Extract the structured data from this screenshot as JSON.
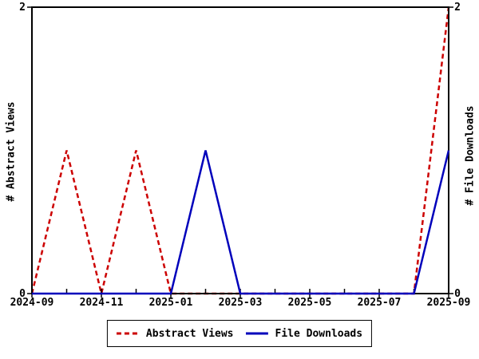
{
  "chart_data": {
    "type": "line",
    "title": "",
    "x": [
      "2024-09",
      "2024-10",
      "2024-11",
      "2024-12",
      "2025-01",
      "2025-02",
      "2025-03",
      "2025-04",
      "2025-05",
      "2025-06",
      "2025-07",
      "2025-08",
      "2025-09"
    ],
    "x_tick_labels": [
      "2024-09",
      "2024-11",
      "2025-01",
      "2025-03",
      "2025-05",
      "2025-07",
      "2025-09"
    ],
    "y_tick_labels": [
      "0",
      "2"
    ],
    "ylim": [
      0,
      2
    ],
    "ylabel_left": "# Abstract Views",
    "ylabel_right": "# File Downloads",
    "grid": false,
    "legend_position": "bottom-center",
    "axis_color": "#000000",
    "background_color": "#ffffff",
    "series": [
      {
        "name": "Abstract Views",
        "color": "#cc0000",
        "style": "dashed",
        "values": [
          0,
          1,
          0,
          1,
          0,
          0,
          0,
          0,
          0,
          0,
          0,
          0,
          2
        ]
      },
      {
        "name": "File Downloads",
        "color": "#0000bb",
        "style": "solid",
        "values": [
          0,
          0,
          0,
          0,
          0,
          1,
          0,
          0,
          0,
          0,
          0,
          0,
          1
        ]
      }
    ]
  }
}
